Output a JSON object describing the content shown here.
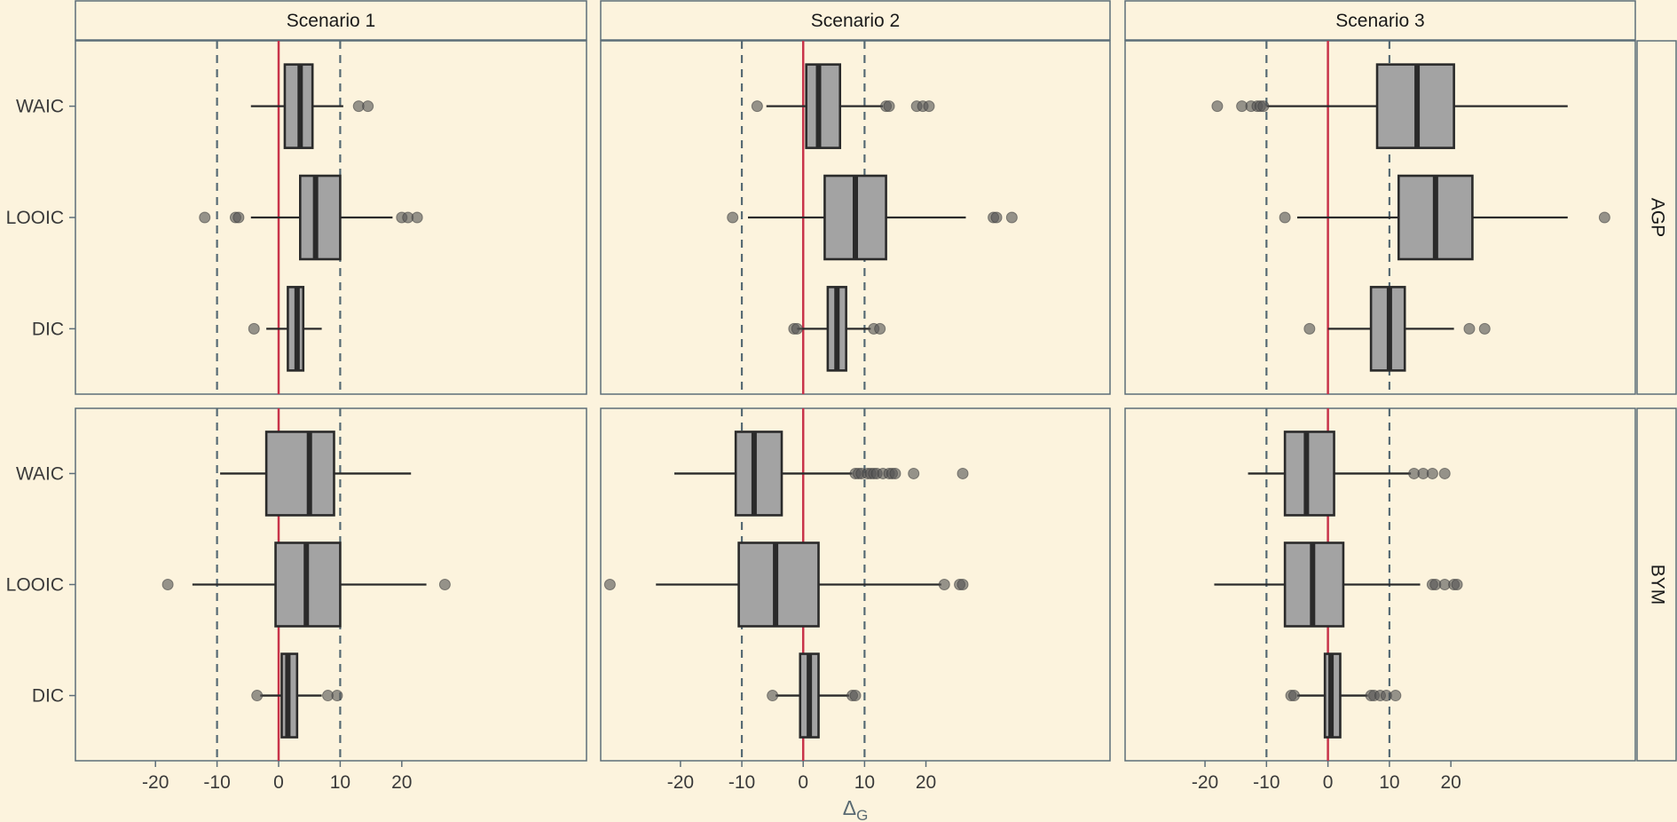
{
  "chart_data": {
    "type": "boxplot",
    "facet_columns": [
      "Scenario 1",
      "Scenario 2",
      "Scenario 3"
    ],
    "facet_rows": [
      "AGP",
      "BYM"
    ],
    "categories": [
      "WAIC",
      "LOOIC",
      "DIC"
    ],
    "xlabel_main": "Δ",
    "xlabel_sub": "G",
    "x_ticks": [
      -20,
      -10,
      0,
      10,
      20
    ],
    "xlim": [
      -33,
      50
    ],
    "reference_lines": {
      "solid": 0,
      "dashed": [
        -10,
        10
      ]
    },
    "colors": {
      "background": "#fcf3dd",
      "box_fill": "#a3a3a3",
      "box_stroke": "#2a2a2a",
      "zero_line": "#c8334a",
      "dashed_line": "#566a74",
      "panel_border": "#5c6e78",
      "outlier": "#555555"
    },
    "panels": [
      {
        "row": "AGP",
        "col": "Scenario 1",
        "boxes": [
          {
            "category": "WAIC",
            "whisker_low": -4.5,
            "q1": 1,
            "median": 3.5,
            "q3": 5.5,
            "whisker_high": 10.5,
            "outliers": [
              13,
              14.5
            ]
          },
          {
            "category": "LOOIC",
            "whisker_low": -4.5,
            "q1": 3.5,
            "median": 6,
            "q3": 10,
            "whisker_high": 18.5,
            "outliers": [
              -12,
              -7,
              -6.5,
              20,
              21,
              22.5
            ]
          },
          {
            "category": "DIC",
            "whisker_low": -2,
            "q1": 1.5,
            "median": 3,
            "q3": 4,
            "whisker_high": 7,
            "outliers": [
              -4
            ]
          }
        ]
      },
      {
        "row": "AGP",
        "col": "Scenario 2",
        "boxes": [
          {
            "category": "WAIC",
            "whisker_low": -6,
            "q1": 0.5,
            "median": 2.5,
            "q3": 6,
            "whisker_high": 13,
            "outliers": [
              -7.5,
              13.5,
              14,
              18.5,
              19.5,
              20.5
            ]
          },
          {
            "category": "LOOIC",
            "whisker_low": -9,
            "q1": 3.5,
            "median": 8.5,
            "q3": 13.5,
            "whisker_high": 26.5,
            "outliers": [
              -11.5,
              31,
              31.5,
              34
            ]
          },
          {
            "category": "DIC",
            "whisker_low": -1,
            "q1": 4,
            "median": 5.5,
            "q3": 7,
            "whisker_high": 11,
            "outliers": [
              -1.5,
              -1,
              11.5,
              12.5
            ]
          }
        ]
      },
      {
        "row": "AGP",
        "col": "Scenario 3",
        "boxes": [
          {
            "category": "WAIC",
            "whisker_low": -10,
            "q1": 8,
            "median": 14.5,
            "q3": 20.5,
            "whisker_high": 39,
            "outliers": [
              -18,
              -14,
              -12.5,
              -11.5,
              -11,
              -10.5
            ]
          },
          {
            "category": "LOOIC",
            "whisker_low": -5,
            "q1": 11.5,
            "median": 17.5,
            "q3": 23.5,
            "whisker_high": 39,
            "outliers": [
              -7,
              45
            ]
          },
          {
            "category": "DIC",
            "whisker_low": 0,
            "q1": 7,
            "median": 10,
            "q3": 12.5,
            "whisker_high": 20.5,
            "outliers": [
              -3,
              23,
              25.5
            ]
          }
        ]
      },
      {
        "row": "BYM",
        "col": "Scenario 1",
        "boxes": [
          {
            "category": "WAIC",
            "whisker_low": -9.5,
            "q1": -2,
            "median": 5,
            "q3": 9,
            "whisker_high": 21.5,
            "outliers": []
          },
          {
            "category": "LOOIC",
            "whisker_low": -14,
            "q1": -0.5,
            "median": 4.5,
            "q3": 10,
            "whisker_high": 24,
            "outliers": [
              -18,
              27
            ]
          },
          {
            "category": "DIC",
            "whisker_low": -3,
            "q1": 0.5,
            "median": 1.5,
            "q3": 3,
            "whisker_high": 7,
            "outliers": [
              -3.5,
              8,
              9.5
            ]
          }
        ]
      },
      {
        "row": "BYM",
        "col": "Scenario 2",
        "boxes": [
          {
            "category": "WAIC",
            "whisker_low": -21,
            "q1": -11,
            "median": -8,
            "q3": -3.5,
            "whisker_high": 8,
            "outliers": [
              8.5,
              9,
              9.5,
              10.5,
              11,
              11.5,
              12,
              13,
              14,
              14.5,
              15,
              18,
              26
            ]
          },
          {
            "category": "LOOIC",
            "whisker_low": -24,
            "q1": -10.5,
            "median": -4.5,
            "q3": 2.5,
            "whisker_high": 22.5,
            "outliers": [
              -31.5,
              23,
              25.5,
              26
            ]
          },
          {
            "category": "DIC",
            "whisker_low": -4.5,
            "q1": -0.5,
            "median": 1,
            "q3": 2.5,
            "whisker_high": 7.5,
            "outliers": [
              -5,
              8,
              8.5
            ]
          }
        ]
      },
      {
        "row": "BYM",
        "col": "Scenario 3",
        "boxes": [
          {
            "category": "WAIC",
            "whisker_low": -13,
            "q1": -7,
            "median": -3.5,
            "q3": 1,
            "whisker_high": 13.5,
            "outliers": [
              14,
              15.5,
              17,
              19
            ]
          },
          {
            "category": "LOOIC",
            "whisker_low": -18.5,
            "q1": -7,
            "median": -2.5,
            "q3": 2.5,
            "whisker_high": 15,
            "outliers": [
              17,
              17.5,
              19,
              20.5,
              21
            ]
          },
          {
            "category": "DIC",
            "whisker_low": -5,
            "q1": -0.5,
            "median": 0.5,
            "q3": 2,
            "whisker_high": 6.5,
            "outliers": [
              -6,
              -5.5,
              7,
              7.5,
              8.5,
              9.5,
              11
            ]
          }
        ]
      }
    ]
  }
}
